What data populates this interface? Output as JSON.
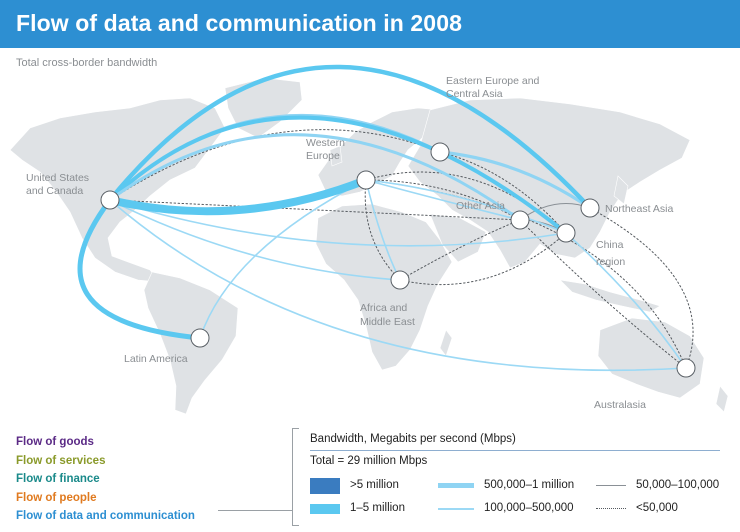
{
  "title": "Flow of data and communication in 2008",
  "subtitle": "Total cross-border bandwidth",
  "regions": {
    "us_canada_1": "United States",
    "us_canada_2": "and Canada",
    "latin_america": "Latin America",
    "western_europe_1": "Western",
    "western_europe_2": "Europe",
    "eastern_europe_1": "Eastern Europe and",
    "eastern_europe_2": "Central Asia",
    "other_asia": "Other Asia",
    "northeast_asia": "Northeast Asia",
    "china_1": "China",
    "china_2": "region",
    "africa_1": "Africa and",
    "africa_2": "Middle East",
    "australasia": "Australasia"
  },
  "flow_types": [
    {
      "label": "Flow of goods",
      "color": "#5b2a86"
    },
    {
      "label": "Flow of services",
      "color": "#8a9a2a"
    },
    {
      "label": "Flow of finance",
      "color": "#1a8a8a"
    },
    {
      "label": "Flow of people",
      "color": "#e07a1f"
    },
    {
      "label": "Flow of data and communication",
      "color": "#2d8fd2"
    }
  ],
  "legend": {
    "title": "Bandwidth, Megabits per second (Mbps)",
    "total": "Total = 29 million Mbps",
    "items": [
      {
        "label": ">5 million"
      },
      {
        "label": "1–5 million"
      },
      {
        "label": "500,000–1 million"
      },
      {
        "label": "100,000–500,000"
      },
      {
        "label": "50,000–100,000"
      },
      {
        "label": "<50,000"
      }
    ]
  },
  "colors": {
    "header": "#2d8fd2",
    "land": "#dfe2e5",
    "flow_very_thick": "#3a7cc0",
    "flow_thick": "#5bc8f0",
    "flow_medium": "#8fd4f3",
    "flow_thin": "#9cd9f5",
    "flow_line": "#8a9096",
    "flow_dotted": "#555a5f"
  }
}
